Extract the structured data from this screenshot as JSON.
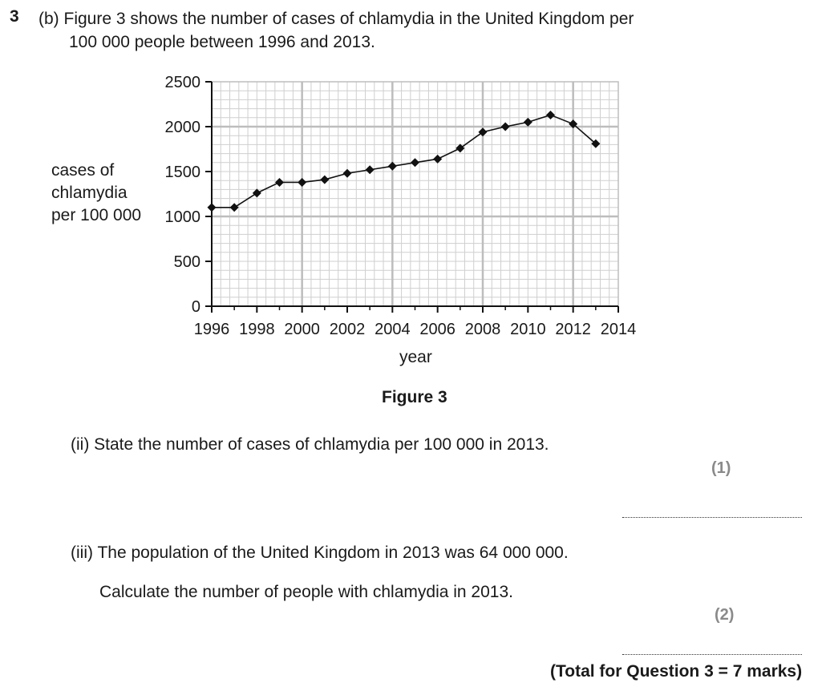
{
  "question": {
    "number": "3",
    "intro_line1": "(b) Figure 3 shows the number of cases of chlamydia in the United Kingdom per",
    "intro_line2": "100 000 people between 1996 and 2013."
  },
  "figure": {
    "caption": "Figure 3",
    "y_label_lines": [
      "cases of",
      "chlamydia",
      "per 100 000"
    ],
    "x_label": "year"
  },
  "chart_data": {
    "type": "line",
    "x": [
      1996,
      1997,
      1998,
      1999,
      2000,
      2001,
      2002,
      2003,
      2004,
      2005,
      2006,
      2007,
      2008,
      2009,
      2010,
      2011,
      2012,
      2013
    ],
    "values": [
      1100,
      1100,
      1260,
      1380,
      1380,
      1410,
      1480,
      1520,
      1560,
      1600,
      1640,
      1760,
      1940,
      2000,
      2050,
      2130,
      2030,
      1810
    ],
    "xlim": [
      1996,
      2014
    ],
    "ylim": [
      0,
      2500
    ],
    "x_ticks": [
      "1996",
      "1998",
      "2000",
      "2002",
      "2004",
      "2006",
      "2008",
      "2010",
      "2012",
      "2014"
    ],
    "y_ticks": [
      "0",
      "500",
      "1000",
      "1500",
      "2000",
      "2500"
    ],
    "grid": true,
    "marker": "diamond"
  },
  "parts": {
    "ii": {
      "text": "(ii)  State the number of cases of chlamydia per 100 000 in 2013.",
      "marks": "(1)"
    },
    "iii": {
      "text": "(iii) The population of the United Kingdom in 2013 was 64 000 000.",
      "text2": "Calculate the number of people with chlamydia in 2013.",
      "marks": "(2)"
    }
  },
  "total": "(Total for Question 3 = 7 marks)"
}
